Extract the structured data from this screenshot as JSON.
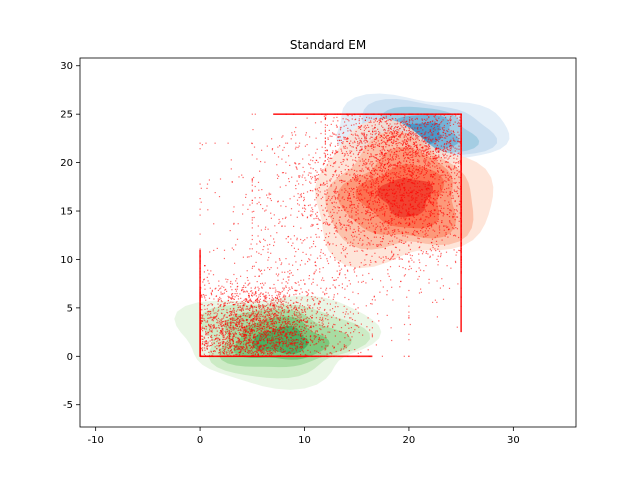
{
  "chart_data": {
    "type": "scatter",
    "title": "Standard EM",
    "xlabel": "",
    "ylabel": "",
    "xlim": [
      -11.5,
      36
    ],
    "ylim": [
      -7.3,
      30.8
    ],
    "xticks": [
      -10,
      0,
      10,
      20,
      30
    ],
    "yticks": [
      -5,
      0,
      5,
      10,
      15,
      20,
      25,
      30
    ],
    "grid": false,
    "legend": "none",
    "density_contours": [
      {
        "name_hint": "lower cluster",
        "color": "#2ca02c",
        "palette": [
          "#e5f5e0",
          "#c7e9c0",
          "#a1d99b",
          "#74c476",
          "#41ab5d"
        ],
        "center": [
          8,
          1.5
        ],
        "spread": [
          4.5,
          2.3
        ],
        "x_range": [
          -2,
          16.5
        ],
        "y_range": [
          -2.8,
          6.5
        ]
      },
      {
        "name_hint": "upper cluster",
        "color": "#1f77b4",
        "palette": [
          "#deebf7",
          "#c6dbef",
          "#9ecae1",
          "#6baed6",
          "#4292c6"
        ],
        "center": [
          21,
          23
        ],
        "spread": [
          4.5,
          2.0
        ],
        "x_range": [
          12.5,
          29
        ],
        "y_range": [
          19,
          27
        ]
      },
      {
        "name_hint": "middle cluster",
        "color": "#d62728",
        "palette": [
          "#fee0d2",
          "#fcbba1",
          "#fc9272",
          "#fb6a4a",
          "#ef3b2c"
        ],
        "center": [
          20,
          16.5
        ],
        "spread": [
          5.0,
          3.0
        ],
        "x_range": [
          10.5,
          27.5
        ],
        "y_range": [
          9.5,
          23.5
        ]
      }
    ],
    "scatter": {
      "color": "#ff0000",
      "alpha": 0.6,
      "clip_box": {
        "x": [
          0,
          25
        ],
        "y": [
          0,
          25
        ]
      },
      "clusters": [
        {
          "center": [
            5,
            2.5
          ],
          "spread": [
            4.0,
            2.5
          ],
          "count": 3000,
          "x_range": [
            0,
            16.5
          ],
          "y_range": [
            0,
            11
          ]
        },
        {
          "center": [
            19,
            17
          ],
          "spread": [
            5.5,
            4.0
          ],
          "count": 2500,
          "x_range": [
            5,
            25
          ],
          "y_range": [
            3,
            25
          ]
        },
        {
          "center": [
            20,
            22.5
          ],
          "spread": [
            4.0,
            1.8
          ],
          "count": 1000,
          "x_range": [
            12,
            25
          ],
          "y_range": [
            17,
            25
          ]
        },
        {
          "center": [
            10,
            10
          ],
          "spread": [
            6.0,
            6.0
          ],
          "count": 500,
          "x_range": [
            0,
            20
          ],
          "y_range": [
            0,
            22
          ]
        }
      ],
      "edge_lines": [
        {
          "x": [
            0,
            16.5
          ],
          "y": [
            0,
            0
          ]
        },
        {
          "x": [
            0,
            0
          ],
          "y": [
            0,
            11
          ]
        },
        {
          "x": [
            25,
            25
          ],
          "y": [
            2.5,
            25
          ]
        },
        {
          "x": [
            7,
            25
          ],
          "y": [
            25,
            25
          ]
        }
      ]
    }
  }
}
